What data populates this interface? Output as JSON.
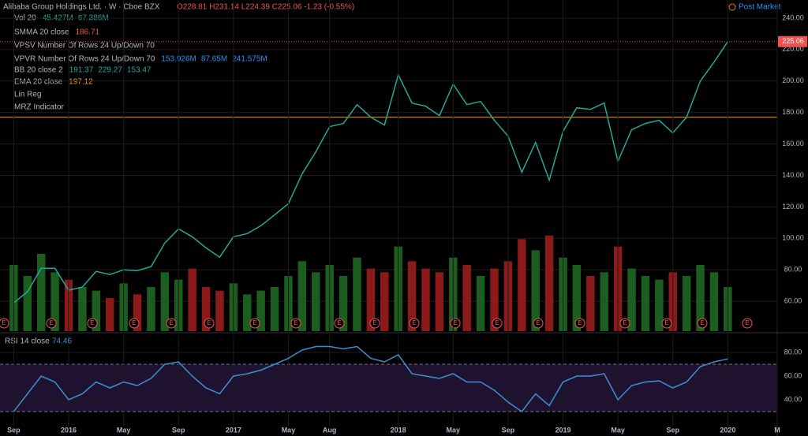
{
  "header": {
    "title": "Alibaba Group Holdings Ltd. · W · Cboe BZX",
    "ohlc": "O228.81 H231.14 L224.39 C225.06 -1.23 (-0.55%)",
    "post_market": "Post Market",
    "indicators": [
      {
        "name": "Vol 20",
        "values": [
          "45.427M",
          "67.386M"
        ]
      },
      {
        "name": "SMMA 20 close",
        "values": [
          "186.71"
        ]
      },
      {
        "name": "VPSV Number Of Rows 24 Up/Down 70",
        "values": []
      },
      {
        "name": "VPVR Number Of Rows 24 Up/Down 70",
        "values": [
          "153.926M",
          "87.65M",
          "241.575M"
        ]
      },
      {
        "name": "BB 20 close 2",
        "values": [
          "191.37",
          "229.27",
          "153.47"
        ]
      },
      {
        "name": "EMA 20 close",
        "values": [
          "197.12"
        ]
      },
      {
        "name": "Lin Reg",
        "values": []
      },
      {
        "name": "MRZ Indicator",
        "values": []
      }
    ],
    "rsi_legend": "RSI 14 close"
  },
  "chart_data": [
    {
      "type": "line",
      "color": "#26a69a",
      "x": [
        -4,
        -3,
        -2,
        -1,
        0,
        1,
        2,
        3,
        4,
        5,
        6,
        7,
        8,
        9,
        10,
        11,
        12,
        13,
        14,
        15,
        16,
        17,
        18,
        19,
        20,
        21,
        22,
        23,
        24,
        25,
        26,
        27,
        28,
        29,
        30,
        31,
        32,
        33,
        34,
        35,
        36,
        37,
        38,
        39,
        40,
        41,
        42,
        43,
        44,
        45,
        46,
        47,
        48
      ],
      "values": [
        59,
        66,
        81,
        81,
        67,
        69,
        79,
        77,
        80,
        79.5,
        82,
        97,
        106,
        101,
        94,
        88,
        101,
        103,
        108,
        115,
        122,
        141,
        155,
        171,
        173,
        185,
        177,
        172,
        204,
        186,
        184,
        178,
        198,
        185,
        187,
        175,
        165,
        142,
        161,
        137,
        168,
        183,
        182,
        186,
        149,
        169,
        173,
        175,
        167,
        177,
        200,
        212,
        225.06
      ],
      "volume": [
        180,
        150,
        210,
        160,
        140,
        120,
        110,
        90,
        130,
        100,
        120,
        160,
        140,
        170,
        120,
        110,
        130,
        100,
        110,
        120,
        150,
        190,
        160,
        180,
        150,
        200,
        170,
        160,
        230,
        190,
        170,
        160,
        200,
        180,
        150,
        170,
        190,
        250,
        220,
        260,
        200,
        180,
        150,
        160,
        230,
        170,
        150,
        140,
        160,
        150,
        180,
        160,
        120
      ],
      "volume_colors": [
        "#1b5e20",
        "#8b1a1a"
      ],
      "vlim": [
        0,
        900
      ],
      "hlines": [
        {
          "value": 177,
          "color": "#f0a30a"
        }
      ],
      "xlim": [
        -5,
        51.6
      ],
      "ylim": [
        41,
        251.5
      ],
      "yticks": [
        {
          "value": 60,
          "label": "60.00"
        },
        {
          "value": 80,
          "label": "80.00"
        },
        {
          "value": 100,
          "label": "100.00"
        },
        {
          "value": 120,
          "label": "120.00"
        },
        {
          "value": 140,
          "label": "140.00"
        },
        {
          "value": 160,
          "label": "160.00"
        },
        {
          "value": 180,
          "label": "180.00"
        },
        {
          "value": 200,
          "label": "200.00"
        },
        {
          "value": 220,
          "label": "220.00"
        },
        {
          "value": 240,
          "label": "240.00"
        }
      ],
      "grid": true
    },
    {
      "type": "line",
      "color": "#3d8fd1",
      "x": [
        -4,
        -3,
        -2,
        -1,
        0,
        1,
        2,
        3,
        4,
        5,
        6,
        7,
        8,
        9,
        10,
        11,
        12,
        13,
        14,
        15,
        16,
        17,
        18,
        19,
        20,
        21,
        22,
        23,
        24,
        25,
        26,
        27,
        28,
        29,
        30,
        31,
        32,
        33,
        34,
        35,
        36,
        37,
        38,
        39,
        40,
        41,
        42,
        43,
        44,
        45,
        46,
        47,
        48
      ],
      "values": [
        30,
        45,
        60,
        55,
        40,
        45,
        55,
        50,
        55,
        52,
        58,
        70,
        72,
        60,
        50,
        45,
        60,
        62,
        65,
        70,
        75,
        82,
        85,
        85,
        83,
        85,
        75,
        72,
        78,
        62,
        60,
        58,
        62,
        55,
        55,
        48,
        38,
        30,
        45,
        35,
        55,
        60,
        60,
        62,
        40,
        52,
        55,
        56,
        50,
        55,
        68,
        72,
        74.46
      ],
      "bands": [
        30,
        70
      ],
      "band_fill": "#1e1230",
      "xlim": [
        -5,
        51.6
      ],
      "ylim": [
        18,
        94.7
      ],
      "yticks": [
        {
          "value": 40,
          "label": "40.00"
        },
        {
          "value": 60,
          "label": "60.00"
        },
        {
          "value": 80,
          "label": "80.00"
        }
      ],
      "xticks": [
        {
          "value": -4,
          "label": "Sep"
        },
        {
          "value": 0,
          "label": "2016"
        },
        {
          "value": 4,
          "label": "May"
        },
        {
          "value": 8,
          "label": "Sep"
        },
        {
          "value": 12,
          "label": "2017"
        },
        {
          "value": 16,
          "label": "May"
        },
        {
          "value": 19,
          "label": "Aug"
        },
        {
          "value": 24,
          "label": "2018"
        },
        {
          "value": 28,
          "label": "May"
        },
        {
          "value": 32,
          "label": "Sep"
        },
        {
          "value": 36,
          "label": "2019"
        },
        {
          "value": 40,
          "label": "May"
        },
        {
          "value": 44,
          "label": "Sep"
        },
        {
          "value": 48,
          "label": "2020"
        },
        {
          "value": 51.6,
          "label": "M"
        }
      ],
      "grid": true
    }
  ]
}
